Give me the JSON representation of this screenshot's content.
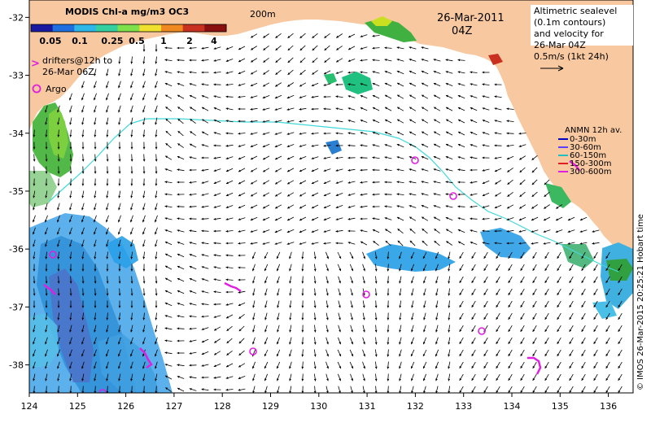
{
  "map": {
    "colorbar": {
      "title": "MODIS Chl-a mg/m3 OC3",
      "ticks": [
        "0.05",
        "0.1",
        "0.25",
        "0.5",
        "1",
        "2",
        "4"
      ],
      "colors": [
        "#1a1aa0",
        "#1f6fe0",
        "#2fb7e8",
        "#36d0a0",
        "#7ee04a",
        "#f0e030",
        "#f08a20",
        "#c83020",
        "#8a1010"
      ]
    },
    "scale_label": "200m",
    "date": "26-Mar-2011",
    "time": "04Z",
    "legend_altimetry": [
      "Altimetric sealevel",
      "(0.1m contours)",
      "and velocity for",
      "26-Mar 04Z",
      "0.5m/s (1kt 24h)"
    ],
    "legend_drifters": [
      "drifters@12h to",
      "26-Mar 06Z"
    ],
    "legend_drifters_symbol": ">",
    "legend_argo": "Argo",
    "legend_anmn": {
      "title": "ANMN 12h av.",
      "items": [
        {
          "label": "0-30m",
          "color": "#0000c0"
        },
        {
          "label": "30-60m",
          "color": "#6040ff"
        },
        {
          "label": "60-150m",
          "color": "#20c0c0"
        },
        {
          "label": "150-300m",
          "color": "#e02020"
        },
        {
          "label": "300-600m",
          "color": "#e020e0"
        }
      ]
    },
    "credit": "© IMOS 26-Mar-2015 20:25:21 Hobart time",
    "x_ticks": [
      "124",
      "125",
      "126",
      "127",
      "128",
      "129",
      "130",
      "131",
      "132",
      "133",
      "134",
      "135",
      "136"
    ],
    "y_ticks": [
      "-32",
      "-33",
      "-34",
      "-35",
      "-36",
      "-37",
      "-38"
    ],
    "colors": {
      "land": "#f8c9a0",
      "ocean": "#ffffff",
      "isobath": "#40d8d8",
      "argo": "#e020e0",
      "drifter": "#e020e0",
      "arrow": "#000000"
    }
  }
}
